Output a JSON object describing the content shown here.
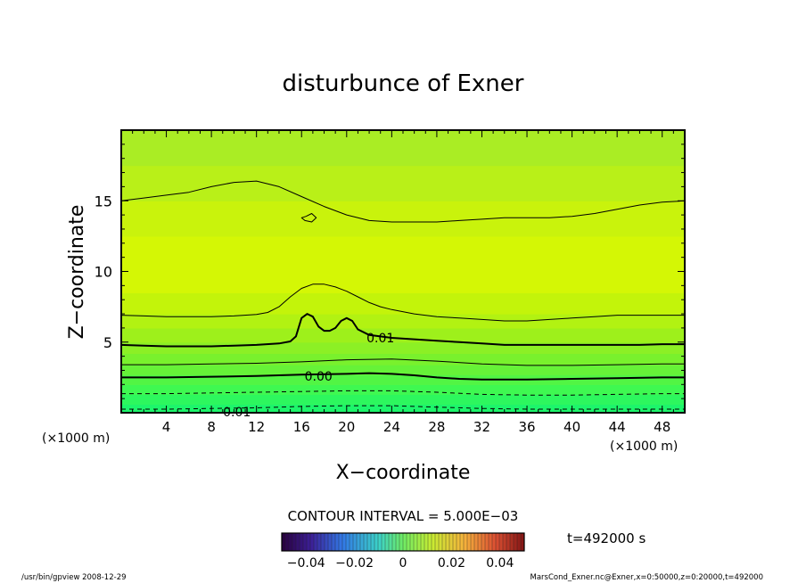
{
  "chart_data": {
    "type": "contour",
    "title": "disturbunce of Exner",
    "xlabel": "X−coordinate",
    "ylabel": "Z−coordinate",
    "x_unit": "(×1000 m)",
    "y_unit": "(×1000 m)",
    "xlim": [
      0,
      50
    ],
    "ylim": [
      0,
      20
    ],
    "x_ticks": [
      "4",
      "8",
      "12",
      "16",
      "20",
      "24",
      "28",
      "32",
      "36",
      "40",
      "44",
      "48"
    ],
    "x_tick_values": [
      4,
      8,
      12,
      16,
      20,
      24,
      28,
      32,
      36,
      40,
      44,
      48
    ],
    "y_ticks": [
      "5",
      "10",
      "15"
    ],
    "y_tick_values": [
      5,
      10,
      15
    ],
    "contour_interval_label": "CONTOUR INTERVAL = 5.000E−03",
    "contour_labels": [
      {
        "text": "0.01",
        "x": 23.0,
        "z": 5.3
      },
      {
        "text": "0.00",
        "x": 17.5,
        "z": 2.6
      },
      {
        "text": "−0.01",
        "x": 9.8,
        "z": 0.05
      }
    ],
    "contours": [
      {
        "name": "upper-thin",
        "style": "thin",
        "x": [
          0,
          2,
          4,
          6,
          8,
          10,
          12,
          14,
          16,
          18,
          20,
          22,
          24,
          26,
          28,
          30,
          32,
          34,
          36,
          38,
          40,
          42,
          44,
          46,
          48,
          50
        ],
        "z": [
          15.0,
          15.2,
          15.4,
          15.6,
          16.0,
          16.3,
          16.4,
          16.0,
          15.3,
          14.6,
          14.0,
          13.6,
          13.5,
          13.5,
          13.5,
          13.6,
          13.7,
          13.8,
          13.8,
          13.8,
          13.9,
          14.1,
          14.4,
          14.7,
          14.9,
          15.0
        ]
      },
      {
        "name": "upper-island",
        "style": "thin",
        "x": [
          16.4,
          16.9,
          17.3,
          16.9,
          16.3,
          16.0,
          16.4
        ],
        "z": [
          13.9,
          14.1,
          13.8,
          13.5,
          13.6,
          13.8,
          13.9
        ]
      },
      {
        "name": "middle-thin",
        "style": "thin",
        "x": [
          0,
          2,
          4,
          6,
          8,
          10,
          12,
          13,
          14,
          15,
          16,
          17,
          18,
          19,
          20,
          21,
          22,
          23,
          24,
          26,
          28,
          30,
          32,
          34,
          36,
          38,
          40,
          42,
          44,
          46,
          48,
          50
        ],
        "z": [
          6.9,
          6.85,
          6.8,
          6.8,
          6.8,
          6.85,
          6.95,
          7.1,
          7.5,
          8.2,
          8.8,
          9.1,
          9.1,
          8.9,
          8.6,
          8.2,
          7.8,
          7.5,
          7.3,
          7.0,
          6.8,
          6.7,
          6.6,
          6.5,
          6.5,
          6.6,
          6.7,
          6.8,
          6.9,
          6.9,
          6.9,
          6.9
        ]
      },
      {
        "name": "0.01-thick",
        "style": "thick",
        "x": [
          0,
          2,
          4,
          6,
          8,
          10,
          12,
          14,
          15,
          15.5,
          16,
          16.5,
          17,
          17.5,
          18,
          18.5,
          19,
          19.5,
          20,
          20.5,
          21,
          22,
          24,
          26,
          28,
          30,
          32,
          34,
          36,
          38,
          40,
          42,
          44,
          46,
          48,
          50
        ],
        "z": [
          4.8,
          4.75,
          4.7,
          4.7,
          4.7,
          4.75,
          4.8,
          4.9,
          5.05,
          5.4,
          6.7,
          7.0,
          6.8,
          6.1,
          5.8,
          5.8,
          6.0,
          6.5,
          6.7,
          6.5,
          5.9,
          5.5,
          5.3,
          5.2,
          5.1,
          5.0,
          4.9,
          4.8,
          4.8,
          4.8,
          4.8,
          4.8,
          4.8,
          4.8,
          4.85,
          4.85
        ]
      },
      {
        "name": "lower-thin",
        "style": "thin",
        "x": [
          0,
          4,
          8,
          12,
          16,
          20,
          24,
          28,
          32,
          36,
          40,
          44,
          48,
          50
        ],
        "z": [
          3.4,
          3.4,
          3.45,
          3.5,
          3.6,
          3.75,
          3.8,
          3.65,
          3.45,
          3.35,
          3.35,
          3.4,
          3.45,
          3.45
        ]
      },
      {
        "name": "0.00-thick",
        "style": "thick",
        "x": [
          0,
          4,
          8,
          12,
          16,
          20,
          22,
          24,
          26,
          28,
          30,
          32,
          36,
          40,
          44,
          48,
          50
        ],
        "z": [
          2.5,
          2.5,
          2.55,
          2.6,
          2.7,
          2.75,
          2.8,
          2.75,
          2.65,
          2.5,
          2.4,
          2.35,
          2.35,
          2.4,
          2.45,
          2.5,
          2.5
        ]
      },
      {
        "name": "dashed-1",
        "style": "dashed",
        "x": [
          0,
          4,
          8,
          12,
          16,
          20,
          24,
          28,
          32,
          36,
          40,
          44,
          48,
          50
        ],
        "z": [
          1.35,
          1.35,
          1.4,
          1.45,
          1.5,
          1.55,
          1.55,
          1.45,
          1.3,
          1.25,
          1.25,
          1.3,
          1.35,
          1.35
        ]
      },
      {
        "name": "dashed-2",
        "style": "dashed",
        "x": [
          0,
          4,
          8,
          12,
          16,
          20,
          24,
          28,
          32,
          36,
          40,
          44,
          48,
          50
        ],
        "z": [
          0.25,
          0.25,
          0.3,
          0.35,
          0.45,
          0.5,
          0.5,
          0.4,
          0.3,
          0.25,
          0.25,
          0.25,
          0.25,
          0.25
        ]
      }
    ],
    "shading_bands": [
      {
        "from": 0.0,
        "to": 0.6,
        "color": "#1df56b"
      },
      {
        "from": 0.6,
        "to": 1.3,
        "color": "#2df75e"
      },
      {
        "from": 1.3,
        "to": 2.0,
        "color": "#3ff851"
      },
      {
        "from": 2.0,
        "to": 2.7,
        "color": "#52f544"
      },
      {
        "from": 2.7,
        "to": 3.4,
        "color": "#66f238"
      },
      {
        "from": 3.4,
        "to": 4.2,
        "color": "#79f12d"
      },
      {
        "from": 4.2,
        "to": 5.0,
        "color": "#8cf025"
      },
      {
        "from": 5.0,
        "to": 6.0,
        "color": "#9ef01b"
      },
      {
        "from": 6.0,
        "to": 7.0,
        "color": "#b2f212"
      },
      {
        "from": 7.0,
        "to": 8.5,
        "color": "#c3f40a"
      },
      {
        "from": 8.5,
        "to": 12.5,
        "color": "#d4f705"
      },
      {
        "from": 12.5,
        "to": 15.0,
        "color": "#c9f30c"
      },
      {
        "from": 15.0,
        "to": 17.5,
        "color": "#b9f018"
      },
      {
        "from": 17.5,
        "to": 20.0,
        "color": "#aaed24"
      }
    ],
    "colorbar": {
      "tick_labels": [
        "−0.04",
        "−0.02",
        "0",
        "0.02",
        "0.04"
      ],
      "tick_values": [
        -0.04,
        -0.02,
        0,
        0.02,
        0.04
      ],
      "range": [
        -0.05,
        0.05
      ]
    },
    "time_label": "t=492000 s"
  },
  "footer": {
    "left": "/usr/bin/gpview   2008-12-29",
    "right": "MarsCond_Exner.nc@Exner,x=0:50000,z=0:20000,t=492000"
  }
}
